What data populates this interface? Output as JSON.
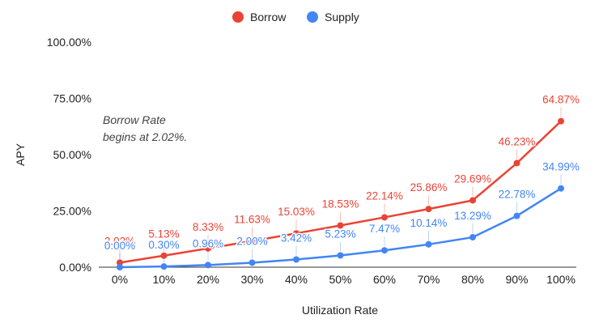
{
  "chart_data": {
    "type": "line",
    "title": "",
    "xlabel": "Utilization Rate",
    "ylabel": "APY",
    "categories": [
      "0%",
      "10%",
      "20%",
      "30%",
      "40%",
      "50%",
      "60%",
      "70%",
      "80%",
      "90%",
      "100%"
    ],
    "x": [
      0,
      10,
      20,
      30,
      40,
      50,
      60,
      70,
      80,
      90,
      100
    ],
    "ylim": [
      0,
      100
    ],
    "yticks": [
      "0.00%",
      "25.00%",
      "50.00%",
      "75.00%",
      "100.00%"
    ],
    "ytick_values": [
      0,
      25,
      50,
      75,
      100
    ],
    "grid": false,
    "legend_position": "top-center",
    "series": [
      {
        "name": "Borrow",
        "color": "#ea4335",
        "values": [
          2.02,
          5.13,
          8.33,
          11.63,
          15.03,
          18.53,
          22.14,
          25.86,
          29.69,
          46.23,
          64.87
        ],
        "labels": [
          "2.02%",
          "5.13%",
          "8.33%",
          "11.63%",
          "15.03%",
          "18.53%",
          "22.14%",
          "25.86%",
          "29.69%",
          "46.23%",
          "64.87%"
        ]
      },
      {
        "name": "Supply",
        "color": "#4285f4",
        "values": [
          0.0,
          0.3,
          0.96,
          2.0,
          3.42,
          5.23,
          7.47,
          10.14,
          13.29,
          22.78,
          34.99
        ],
        "labels": [
          "0.00%",
          "0.30%",
          "0.96%",
          "2.00%",
          "3.42%",
          "5.23%",
          "7.47%",
          "10.14%",
          "13.29%",
          "22.78%",
          "34.99%"
        ]
      }
    ],
    "annotation": {
      "lines": [
        "Borrow Rate",
        "begins at 2.02%."
      ]
    }
  }
}
